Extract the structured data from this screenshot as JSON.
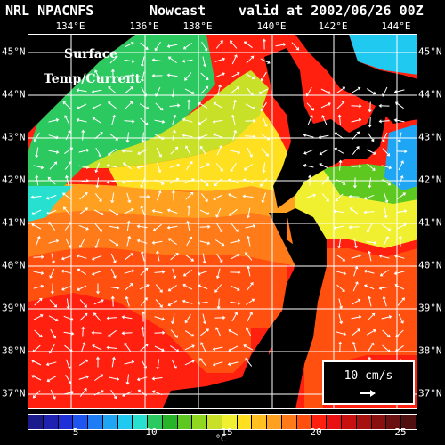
{
  "header": {
    "model": "NRL NPACNFS",
    "kind": "Nowcast",
    "valid": "valid at 2002/06/26 00Z"
  },
  "panel": {
    "line1": "Surface",
    "line2": "Temp/Current"
  },
  "axes": {
    "lon": [
      "134°E",
      "136°E",
      "138°E",
      "140°E",
      "142°E",
      "144°E"
    ],
    "lat": [
      "45°N",
      "44°N",
      "43°N",
      "42°N",
      "41°N",
      "40°N",
      "39°N",
      "38°N",
      "37°N"
    ]
  },
  "reference_vector": {
    "label": "10 cm/s"
  },
  "colorbar": {
    "ticks": [
      "5",
      "10",
      "15",
      "20",
      "25"
    ],
    "unit": "°C",
    "colors": [
      "#1a1a8c",
      "#1f22b0",
      "#2030d8",
      "#1e55f0",
      "#1e7cf5",
      "#1ea6f5",
      "#20c9f0",
      "#28e0d0",
      "#2cc860",
      "#28b428",
      "#5cc820",
      "#90d820",
      "#c8e028",
      "#f0f030",
      "#ffe020",
      "#ffc020",
      "#ffa020",
      "#ff7a18",
      "#ff5010",
      "#ff2010",
      "#e81010",
      "#c81010",
      "#a81010",
      "#8a1010",
      "#6a1010",
      "#501010"
    ]
  },
  "map": {
    "colors": {
      "land": "#000000",
      "grid": "#ffffff",
      "ocean_north": "#28e0d0",
      "ocean_south": "#ff2010"
    }
  }
}
